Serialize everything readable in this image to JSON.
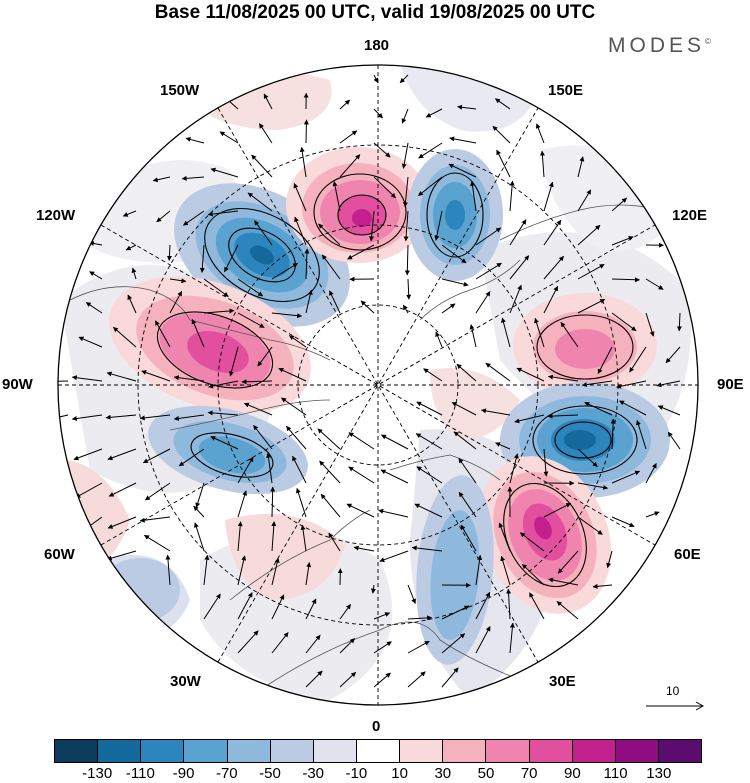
{
  "title": "Base 11/08/2025 00 UTC, valid 19/08/2025 00 UTC",
  "brand": "MODES",
  "brand_mark": "©",
  "map": {
    "projection": "polar-stereographic-north",
    "longitude_labels": {
      "n180": "180",
      "e150": "150E",
      "e120": "120E",
      "e90": "90E",
      "e60": "60E",
      "e30": "30E",
      "s0": "0",
      "w30": "30W",
      "w60": "60W",
      "w90": "90W",
      "w120": "120W",
      "w150": "150W"
    },
    "anomaly_centers": [
      {
        "name": "alaska-low",
        "sign": "negative",
        "value": -100
      },
      {
        "name": "bering-high",
        "sign": "positive",
        "value": 100
      },
      {
        "name": "east-siberia-low",
        "sign": "negative",
        "value": -80
      },
      {
        "name": "canada-high",
        "sign": "positive",
        "value": 90
      },
      {
        "name": "labrador-low",
        "sign": "negative",
        "value": -70
      },
      {
        "name": "siberia-high",
        "sign": "positive",
        "value": 60
      },
      {
        "name": "ural-low",
        "sign": "negative",
        "value": -110
      },
      {
        "name": "caspian-high",
        "sign": "positive",
        "value": 100
      },
      {
        "name": "europe-low",
        "sign": "negative",
        "value": -50
      },
      {
        "name": "atlantic-weak-low",
        "sign": "negative",
        "value": -40
      }
    ]
  },
  "reference_vector": {
    "value": "10",
    "icon": "arrow-right-icon"
  },
  "colorbar": {
    "colors": [
      "#0b3c5d",
      "#13689c",
      "#2c85bd",
      "#5aa2cf",
      "#8eb9dc",
      "#bccbe4",
      "#e2e2ef",
      "#ffffff",
      "#f9d9d9",
      "#f5b2bd",
      "#ef84ae",
      "#e24f9f",
      "#c3208d",
      "#8f0c81",
      "#5b0c6e"
    ],
    "tick_labels": [
      "-130",
      "-110",
      "-90",
      "-70",
      "-50",
      "-30",
      "-10",
      "10",
      "30",
      "50",
      "70",
      "90",
      "110",
      "130"
    ]
  }
}
